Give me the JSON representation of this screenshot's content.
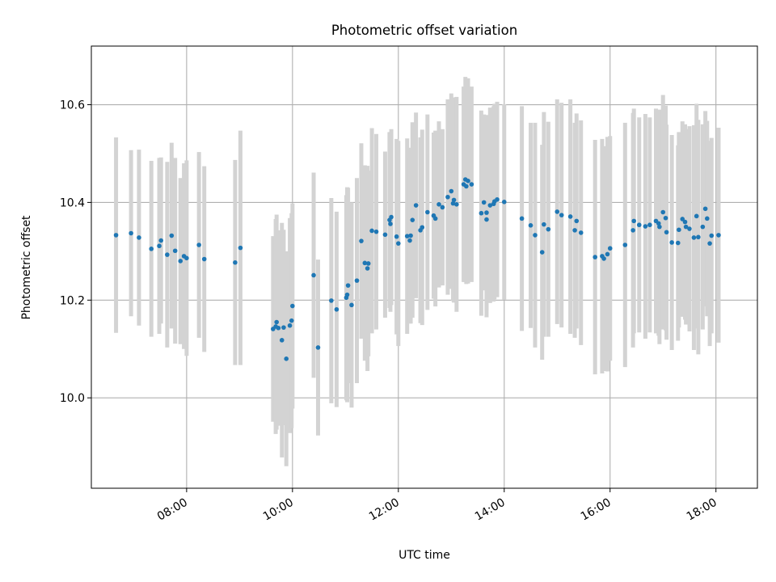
{
  "chart_data": {
    "type": "scatter",
    "title": "Photometric offset variation",
    "xlabel": "UTC time",
    "ylabel": "Photometric offset",
    "xlim": [
      "06:12",
      "18:47"
    ],
    "ylim": [
      9.815,
      10.72
    ],
    "x_ticks": [
      "08:00",
      "10:00",
      "12:00",
      "14:00",
      "16:00",
      "18:00"
    ],
    "y_ticks": [
      10.0,
      10.2,
      10.4,
      10.6
    ],
    "grid": true,
    "colors": {
      "points": "#1f77b4",
      "errorbars": "#d3d3d3",
      "grid": "#b0b0b0"
    },
    "series": [
      {
        "marker": "point",
        "x": [
          "06:40",
          "06:57",
          "07:06",
          "07:20",
          "07:29",
          "07:31",
          "07:38",
          "07:43",
          "07:47",
          "07:53",
          "07:57",
          "08:00",
          "08:14",
          "08:20",
          "08:55",
          "09:01",
          "09:38",
          "09:41",
          "09:42",
          "09:44",
          "09:48",
          "09:50",
          "09:53",
          "09:57",
          "09:59",
          "10:00",
          "10:24",
          "10:29",
          "10:44",
          "10:50",
          "11:01",
          "11:02",
          "11:03",
          "11:07",
          "11:13",
          "11:18",
          "11:22",
          "11:25",
          "11:26",
          "11:30",
          "11:35",
          "11:45",
          "11:50",
          "11:51",
          "11:52",
          "11:58",
          "12:00",
          "12:10",
          "12:13",
          "12:14",
          "12:16",
          "12:20",
          "12:25",
          "12:27",
          "12:33",
          "12:40",
          "12:42",
          "12:46",
          "12:50",
          "12:56",
          "13:00",
          "13:02",
          "13:03",
          "13:06",
          "13:14",
          "13:16",
          "13:17",
          "13:19",
          "13:23",
          "13:34",
          "13:37",
          "13:40",
          "13:40",
          "13:44",
          "13:48",
          "13:49",
          "13:52",
          "14:00",
          "14:20",
          "14:30",
          "14:35",
          "14:43",
          "14:45",
          "14:50",
          "15:00",
          "15:05",
          "15:15",
          "15:20",
          "15:22",
          "15:27",
          "15:43",
          "15:51",
          "15:53",
          "15:57",
          "16:00",
          "16:17",
          "16:26",
          "16:27",
          "16:33",
          "16:40",
          "16:45",
          "16:52",
          "16:55",
          "16:56",
          "17:00",
          "17:03",
          "17:04",
          "17:10",
          "17:17",
          "17:18",
          "17:22",
          "17:25",
          "17:26",
          "17:30",
          "17:35",
          "17:38",
          "17:40",
          "17:45",
          "17:48",
          "17:50",
          "17:53",
          "17:55",
          "18:03"
        ],
        "y": [
          10.333,
          10.337,
          10.328,
          10.305,
          10.311,
          10.322,
          10.293,
          10.332,
          10.301,
          10.28,
          10.29,
          10.286,
          10.313,
          10.284,
          10.277,
          10.307,
          10.141,
          10.146,
          10.155,
          10.143,
          10.118,
          10.144,
          10.08,
          10.148,
          10.158,
          10.188,
          10.251,
          10.103,
          10.199,
          10.181,
          10.205,
          10.211,
          10.23,
          10.19,
          10.24,
          10.321,
          10.276,
          10.265,
          10.275,
          10.342,
          10.34,
          10.334,
          10.364,
          10.356,
          10.37,
          10.33,
          10.316,
          10.331,
          10.322,
          10.332,
          10.364,
          10.394,
          10.343,
          10.349,
          10.38,
          10.373,
          10.367,
          10.396,
          10.39,
          10.411,
          10.423,
          10.398,
          10.405,
          10.396,
          10.437,
          10.447,
          10.433,
          10.444,
          10.437,
          10.378,
          10.4,
          10.365,
          10.379,
          10.394,
          10.397,
          10.402,
          10.406,
          10.401,
          10.367,
          10.353,
          10.333,
          10.298,
          10.355,
          10.345,
          10.381,
          10.374,
          10.371,
          10.343,
          10.362,
          10.338,
          10.288,
          10.29,
          10.285,
          10.294,
          10.306,
          10.313,
          10.343,
          10.362,
          10.354,
          10.351,
          10.354,
          10.362,
          10.357,
          10.35,
          10.38,
          10.368,
          10.339,
          10.318,
          10.317,
          10.344,
          10.366,
          10.36,
          10.35,
          10.346,
          10.328,
          10.372,
          10.329,
          10.35,
          10.387,
          10.367,
          10.316,
          10.332,
          10.333
        ],
        "err": [
          0.2,
          0.17,
          0.18,
          0.18,
          0.18,
          0.17,
          0.19,
          0.19,
          0.19,
          0.17,
          0.19,
          0.2,
          0.19,
          0.19,
          0.21,
          0.24,
          0.19,
          0.22,
          0.22,
          0.2,
          0.24,
          0.2,
          0.22,
          0.22,
          0.22,
          0.21,
          0.21,
          0.18,
          0.21,
          0.2,
          0.21,
          0.22,
          0.2,
          0.21,
          0.21,
          0.2,
          0.2,
          0.21,
          0.19,
          0.21,
          0.2,
          0.17,
          0.18,
          0.18,
          0.18,
          0.2,
          0.21,
          0.2,
          0.17,
          0.18,
          0.2,
          0.19,
          0.19,
          0.2,
          0.2,
          0.17,
          0.18,
          0.17,
          0.16,
          0.2,
          0.2,
          0.2,
          0.21,
          0.22,
          0.2,
          0.21,
          0.2,
          0.21,
          0.2,
          0.21,
          0.18,
          0.2,
          0.2,
          0.2,
          0.2,
          0.2,
          0.2,
          0.2,
          0.23,
          0.21,
          0.23,
          0.22,
          0.23,
          0.22,
          0.23,
          0.23,
          0.24,
          0.22,
          0.22,
          0.23,
          0.24,
          0.24,
          0.23,
          0.24,
          0.23,
          0.25,
          0.24,
          0.23,
          0.22,
          0.23,
          0.22,
          0.23,
          0.23,
          0.24,
          0.24,
          0.23,
          0.22,
          0.22,
          0.2,
          0.2,
          0.2,
          0.2,
          0.2,
          0.21,
          0.23,
          0.23,
          0.24,
          0.21,
          0.2,
          0.2,
          0.21,
          0.2,
          0.22
        ]
      }
    ]
  }
}
